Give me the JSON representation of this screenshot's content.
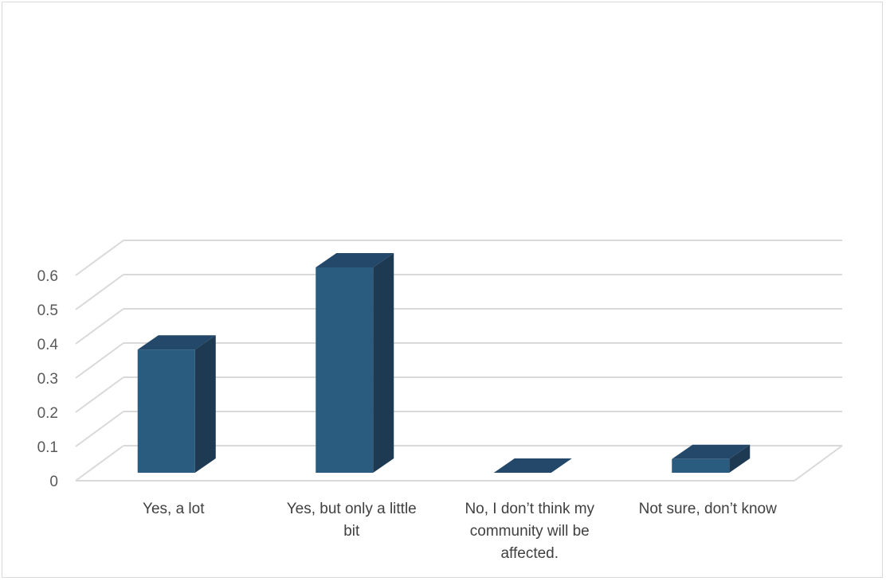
{
  "chart_data": {
    "type": "bar",
    "style": "3d-column",
    "categories": [
      "Yes, a lot",
      "Yes, but only a little bit",
      "No, I don’t think my community will be affected.",
      "Not sure, don’t know"
    ],
    "values": [
      0.36,
      0.6,
      0.0,
      0.04
    ],
    "ylim": [
      0,
      0.6
    ],
    "yticks": [
      "0",
      "0.1",
      "0.2",
      "0.3",
      "0.4",
      "0.5",
      "0.6"
    ],
    "grid": true,
    "legend": "none",
    "colors": {
      "bar_front": "#2a5c80",
      "bar_side": "#1d3a52",
      "bar_top": "#23486a",
      "grid": "#d9d9d9"
    }
  }
}
